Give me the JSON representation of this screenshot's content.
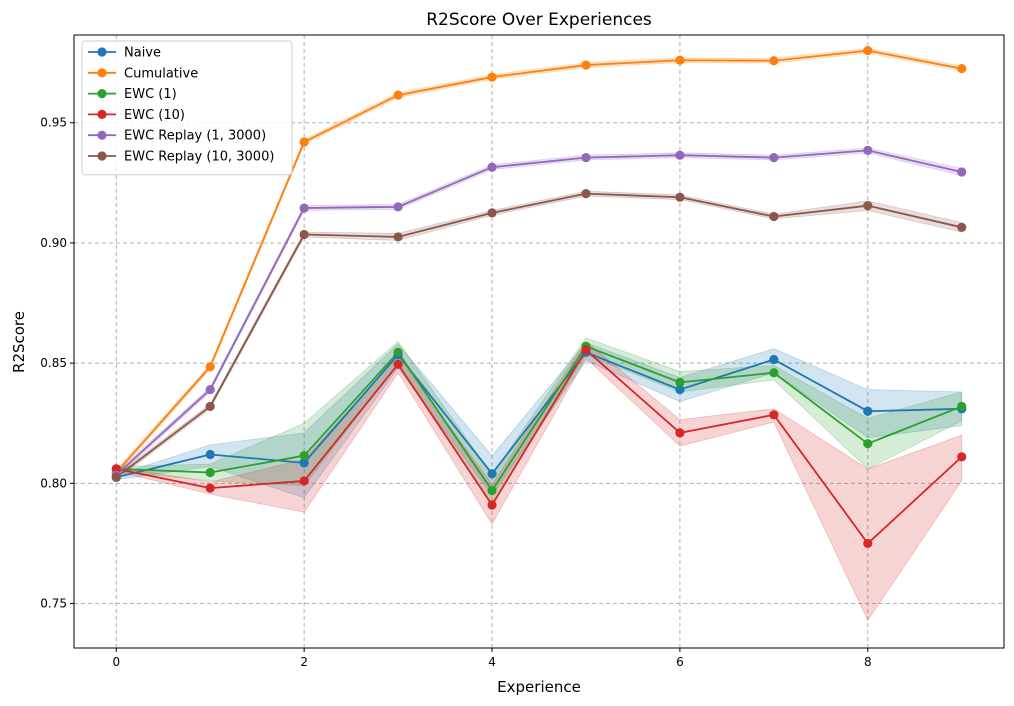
{
  "chart_data": {
    "type": "line",
    "title": "R2Score Over Experiences",
    "xlabel": "Experience",
    "ylabel": "R2Score",
    "xlim": [
      -0.45,
      9.45
    ],
    "ylim": [
      0.7315,
      0.9865
    ],
    "x_ticks": [
      0,
      2,
      4,
      6,
      8
    ],
    "y_ticks": [
      0.75,
      0.8,
      0.85,
      0.9,
      0.95
    ],
    "y_tick_labels": [
      "0.75",
      "0.80",
      "0.85",
      "0.90",
      "0.95"
    ],
    "grid": true,
    "legend_position": "top-left",
    "x": [
      0,
      1,
      2,
      3,
      4,
      5,
      6,
      7,
      8,
      9
    ],
    "series": [
      {
        "name": "Naive",
        "color": "#1f77b4",
        "values": [
          0.8025,
          0.812,
          0.8085,
          0.8535,
          0.804,
          0.8545,
          0.839,
          0.8515,
          0.83,
          0.831
        ],
        "lower": [
          0.8015,
          0.807,
          0.794,
          0.848,
          0.795,
          0.851,
          0.834,
          0.846,
          0.819,
          0.824
        ],
        "upper": [
          0.8035,
          0.816,
          0.821,
          0.858,
          0.8115,
          0.8585,
          0.844,
          0.856,
          0.839,
          0.838
        ]
      },
      {
        "name": "Cumulative",
        "color": "#ff7f0e",
        "values": [
          0.8045,
          0.8485,
          0.942,
          0.9615,
          0.969,
          0.974,
          0.976,
          0.9758,
          0.98,
          0.9725
        ],
        "lower": [
          0.8035,
          0.8475,
          0.941,
          0.9605,
          0.968,
          0.973,
          0.975,
          0.9748,
          0.979,
          0.9715
        ],
        "upper": [
          0.8055,
          0.8495,
          0.943,
          0.9625,
          0.97,
          0.975,
          0.977,
          0.9768,
          0.981,
          0.9735
        ]
      },
      {
        "name": "EWC (1)",
        "color": "#2ca02c",
        "values": [
          0.806,
          0.8045,
          0.8115,
          0.8545,
          0.797,
          0.857,
          0.842,
          0.846,
          0.8165,
          0.832
        ],
        "lower": [
          0.805,
          0.801,
          0.799,
          0.85,
          0.7915,
          0.8535,
          0.838,
          0.843,
          0.806,
          0.826
        ],
        "upper": [
          0.807,
          0.808,
          0.825,
          0.859,
          0.8035,
          0.8605,
          0.8465,
          0.849,
          0.827,
          0.838
        ]
      },
      {
        "name": "EWC (10)",
        "color": "#d62728",
        "values": [
          0.806,
          0.798,
          0.801,
          0.8495,
          0.791,
          0.8555,
          0.821,
          0.8285,
          0.775,
          0.811
        ],
        "lower": [
          0.805,
          0.7955,
          0.788,
          0.846,
          0.783,
          0.852,
          0.8155,
          0.8255,
          0.743,
          0.801
        ],
        "upper": [
          0.807,
          0.8005,
          0.81,
          0.853,
          0.7995,
          0.859,
          0.8265,
          0.831,
          0.806,
          0.82
        ]
      },
      {
        "name": "EWC Replay (1, 3000)",
        "color": "#9467bd",
        "values": [
          0.8035,
          0.839,
          0.9145,
          0.915,
          0.9315,
          0.9355,
          0.9365,
          0.9355,
          0.9385,
          0.9295
        ],
        "lower": [
          0.8025,
          0.838,
          0.9135,
          0.914,
          0.9305,
          0.9345,
          0.9355,
          0.9345,
          0.9375,
          0.928
        ],
        "upper": [
          0.8045,
          0.84,
          0.9155,
          0.916,
          0.9325,
          0.9365,
          0.9375,
          0.9365,
          0.9395,
          0.931
        ]
      },
      {
        "name": "EWC Replay (10, 3000)",
        "color": "#8c564b",
        "values": [
          0.8025,
          0.832,
          0.9035,
          0.9025,
          0.9125,
          0.9205,
          0.919,
          0.911,
          0.9155,
          0.9065
        ],
        "lower": [
          0.8015,
          0.831,
          0.9025,
          0.901,
          0.9115,
          0.9195,
          0.918,
          0.91,
          0.9135,
          0.9045
        ],
        "upper": [
          0.8035,
          0.833,
          0.9045,
          0.904,
          0.9135,
          0.9215,
          0.92,
          0.912,
          0.9175,
          0.9085
        ]
      }
    ]
  }
}
